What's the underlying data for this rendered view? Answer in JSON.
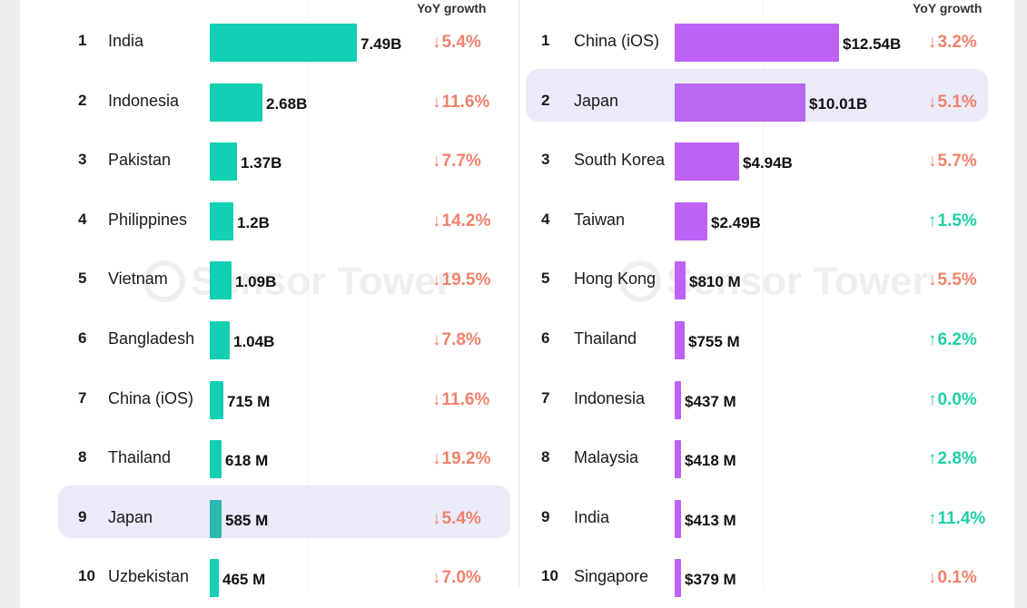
{
  "colors": {
    "left_bar": "#13cfb3",
    "left_bar_highlight": "#2cbab0",
    "right_bar": "#bd62f5",
    "right_bar_highlight": "#b767f0",
    "down": "#f0826c",
    "up": "#1fcfa8"
  },
  "watermark": {
    "text": "Sensor Tower"
  },
  "chart_data": [
    {
      "type": "bar",
      "orientation": "horizontal",
      "yoy_header": "YoY growth",
      "ranks": [
        "1",
        "2",
        "3",
        "4",
        "5",
        "6",
        "7",
        "8",
        "9",
        "10"
      ],
      "categories": [
        "India",
        "Indonesia",
        "Pakistan",
        "Philippines",
        "Vietnam",
        "Bangladesh",
        "China (iOS)",
        "Thailand",
        "Japan",
        "Uzbekistan"
      ],
      "values": [
        7.49,
        2.68,
        1.37,
        1.2,
        1.09,
        1.04,
        0.715,
        0.618,
        0.585,
        0.465
      ],
      "unit": "B",
      "value_labels": [
        "7.49B",
        "2.68B",
        "1.37B",
        "1.2B",
        "1.09B",
        "1.04B",
        "715 M",
        "618 M",
        "585 M",
        "465 M"
      ],
      "yoy": [
        "5.4%",
        "11.6%",
        "7.7%",
        "14.2%",
        "19.5%",
        "7.8%",
        "11.6%",
        "19.2%",
        "5.4%",
        "7.0%"
      ],
      "yoy_direction": [
        "down",
        "down",
        "down",
        "down",
        "down",
        "down",
        "down",
        "down",
        "down",
        "down"
      ],
      "highlighted": "Japan"
    },
    {
      "type": "bar",
      "orientation": "horizontal",
      "yoy_header": "YoY growth",
      "ranks": [
        "1",
        "2",
        "3",
        "4",
        "5",
        "6",
        "7",
        "8",
        "9",
        "10"
      ],
      "categories": [
        "China (iOS)",
        "Japan",
        "South Korea",
        "Taiwan",
        "Hong Kong",
        "Thailand",
        "Indonesia",
        "Malaysia",
        "India",
        "Singapore"
      ],
      "values": [
        12.54,
        10.01,
        4.94,
        2.49,
        0.81,
        0.755,
        0.437,
        0.418,
        0.413,
        0.379
      ],
      "unit": "$B",
      "value_labels": [
        "$12.54B",
        "$10.01B",
        "$4.94B",
        "$2.49B",
        "$810 M",
        "$755 M",
        "$437 M",
        "$418 M",
        "$413 M",
        "$379 M"
      ],
      "yoy": [
        "3.2%",
        "5.1%",
        "5.7%",
        "1.5%",
        "5.5%",
        "6.2%",
        "0.0%",
        "2.8%",
        "11.4%",
        "0.1%"
      ],
      "yoy_direction": [
        "down",
        "down",
        "down",
        "up",
        "down",
        "up",
        "up",
        "up",
        "up",
        "down"
      ],
      "highlighted": "Japan"
    }
  ]
}
